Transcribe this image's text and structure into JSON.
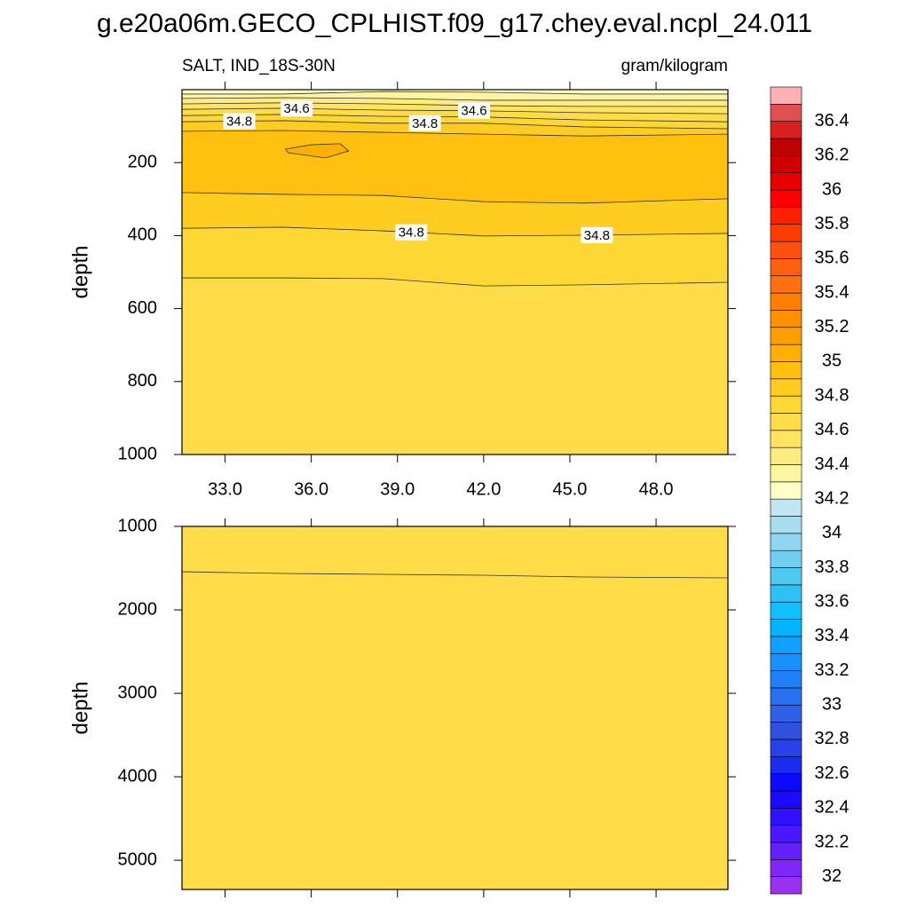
{
  "chart_data": {
    "type": "contour",
    "title": "g.e20a06m.GECO_CPLHIST.f09_g17.chey.eval.ncpl_24.011",
    "left_subtitle": "SALT, IND_18S-30N",
    "right_subtitle": "gram/kilogram",
    "panels": [
      {
        "ylabel": "depth",
        "xlim": [
          31.5,
          50.5
        ],
        "ylim": [
          0,
          1000
        ],
        "xticks": [
          {
            "value": 33,
            "label": "33.0"
          },
          {
            "value": 36,
            "label": "36.0"
          },
          {
            "value": 39,
            "label": "39.0"
          },
          {
            "value": 42,
            "label": "42.0"
          },
          {
            "value": 45,
            "label": "45.0"
          },
          {
            "value": 48,
            "label": "48.0"
          }
        ],
        "yticks": [
          200,
          400,
          600,
          800,
          1000
        ],
        "x": [
          31.5,
          35,
          38.5,
          42,
          45.5,
          50.5
        ],
        "lines": [
          {
            "level": 34.3,
            "depth": [
              12,
              12,
              5,
              7,
              12,
              12
            ]
          },
          {
            "level": 34.4,
            "depth": [
              24,
              22,
              24,
              29,
              29,
              29
            ]
          },
          {
            "level": 34.5,
            "depth": [
              39,
              36,
              39,
              44,
              46,
              46
            ]
          },
          {
            "level": 34.6,
            "depth": [
              54,
              51,
              56,
              58,
              63,
              66
            ]
          },
          {
            "level": 34.7,
            "depth": [
              71,
              68,
              73,
              75,
              83,
              88
            ]
          },
          {
            "level": 34.8,
            "depth": [
              88,
              85,
              92,
              92,
              102,
              107
            ]
          },
          {
            "level": 34.9,
            "depth": [
              114,
              112,
              117,
              122,
              127,
              122
            ]
          },
          {
            "level": 34.9,
            "depth": [
              282,
              287,
              290,
              307,
              311,
              299
            ]
          },
          {
            "level": 34.8,
            "depth": [
              380,
              377,
              387,
              401,
              399,
              394
            ]
          },
          {
            "level": 34.7,
            "depth": [
              516,
              516,
              518,
              538,
              535,
              528
            ]
          }
        ],
        "fills": [
          34.2,
          34.3,
          34.4,
          34.5,
          34.6,
          34.7,
          34.8,
          34.9,
          34.8,
          34.7,
          34.6
        ],
        "closed": [
          {
            "level": 35,
            "x": [
              35.1,
              36,
              37,
              37.3,
              36.5,
              35.2
            ],
            "depth": [
              163,
              151,
              148,
              168,
              187,
              173
            ]
          }
        ]
      },
      {
        "ylabel": "depth",
        "xlim": [
          31.5,
          50.5
        ],
        "ylim": [
          1000,
          5350
        ],
        "xticks": [
          33,
          36,
          39,
          42,
          45,
          48
        ],
        "yticks": [
          1000,
          2000,
          3000,
          4000,
          5000
        ],
        "x": [
          31.5,
          35,
          38.5,
          42,
          45.5,
          50.5
        ],
        "lines": [
          {
            "depth": [
              1543,
              1564,
              1574,
              1585,
              1606,
              1617
            ]
          }
        ],
        "fills": [
          34.6,
          34.6
        ],
        "closed": []
      }
    ],
    "colorbar": {
      "levels": [
        32,
        32.1,
        32.2,
        32.3,
        32.4,
        32.5,
        32.6,
        32.7,
        32.8,
        32.9,
        33,
        33.1,
        33.2,
        33.3,
        33.4,
        33.5,
        33.6,
        33.7,
        33.8,
        33.9,
        34,
        34.1,
        34.2,
        34.3,
        34.4,
        34.5,
        34.6,
        34.7,
        34.8,
        34.9,
        35,
        35.1,
        35.2,
        35.3,
        35.4,
        35.5,
        35.6,
        35.7,
        35.8,
        35.9,
        36,
        36.1,
        36.2,
        36.3,
        36.4,
        36.5
      ],
      "colors": [
        "#9a30f0",
        "#7f28f5",
        "#6420fa",
        "#4a18ff",
        "#3010ff",
        "#1a0aff",
        "#0a0aff",
        "#1a2cf0",
        "#2a40e8",
        "#3050e0",
        "#2f60e8",
        "#2870f0",
        "#2080f5",
        "#1890ff",
        "#10a0ff",
        "#00b4ff",
        "#10c0ff",
        "#30c0f5",
        "#50c8f0",
        "#70cff0",
        "#90d6f0",
        "#a8ddf0",
        "#c0e6f4",
        "#ffffc8",
        "#fff4a0",
        "#ffec80",
        "#ffe460",
        "#ffdc48",
        "#fdd835",
        "#ffcc20",
        "#ffc010",
        "#ffb000",
        "#ffa000",
        "#ff9000",
        "#ff8000",
        "#ff7010",
        "#ff6010",
        "#ff5010",
        "#ff3c00",
        "#ff2000",
        "#ff0000",
        "#e80000",
        "#d00000",
        "#c00000",
        "#d82020",
        "#e05050",
        "#ffb0b0"
      ],
      "ticks": [
        32,
        32.2,
        32.4,
        32.6,
        32.8,
        33,
        33.2,
        33.4,
        33.6,
        33.8,
        34,
        34.2,
        34.4,
        34.6,
        34.8,
        35,
        35.2,
        35.4,
        35.6,
        35.8,
        36,
        36.2,
        36.4
      ]
    }
  }
}
